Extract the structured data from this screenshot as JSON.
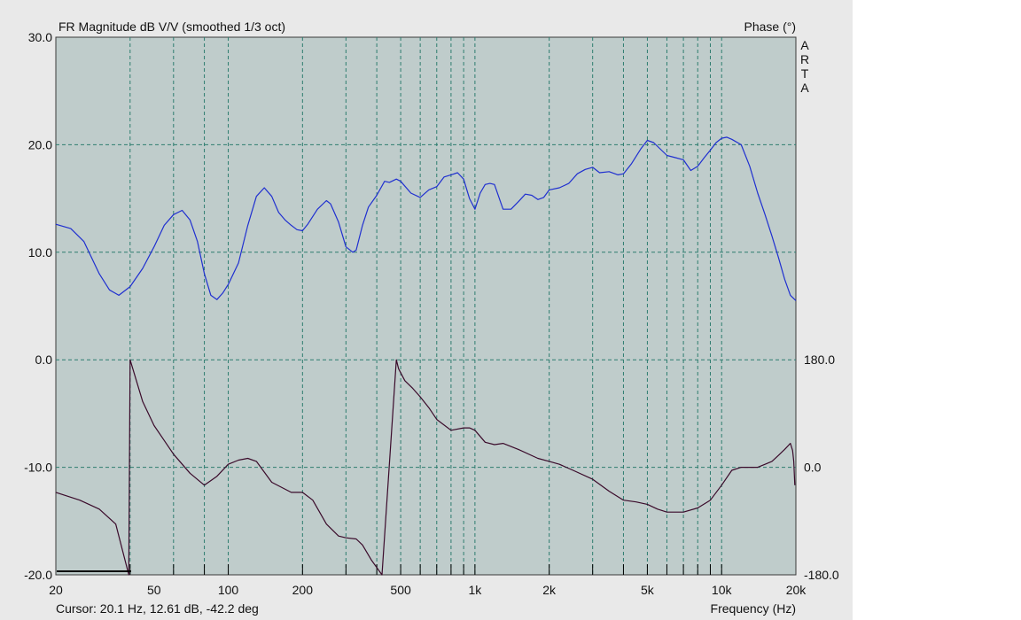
{
  "chart_data": {
    "type": "line",
    "title": "FR Magnitude dB V/V (smoothed 1/3 oct)",
    "ylabel_right": "Phase (°)",
    "xlabel": "Frequency (Hz)",
    "watermark": [
      "A",
      "R",
      "T",
      "A"
    ],
    "cursor_readout": "Cursor: 20.1 Hz, 12.61 dB, -42.2 deg",
    "x_scale": "log",
    "xlim": [
      20,
      20000
    ],
    "ylim": [
      -20,
      30
    ],
    "y2lim": [
      -180,
      180
    ],
    "grid": true,
    "x_ticks": [
      {
        "value": 20,
        "label": "20"
      },
      {
        "value": 50,
        "label": "50"
      },
      {
        "value": 100,
        "label": "100"
      },
      {
        "value": 200,
        "label": "200"
      },
      {
        "value": 500,
        "label": "500"
      },
      {
        "value": 1000,
        "label": "1k"
      },
      {
        "value": 2000,
        "label": "2k"
      },
      {
        "value": 5000,
        "label": "5k"
      },
      {
        "value": 10000,
        "label": "10k"
      },
      {
        "value": 20000,
        "label": "20k"
      }
    ],
    "y_ticks": [
      {
        "value": 30,
        "label": "30.0"
      },
      {
        "value": 20,
        "label": "20.0"
      },
      {
        "value": 10,
        "label": "10.0"
      },
      {
        "value": 0,
        "label": "0.0"
      },
      {
        "value": -10,
        "label": "-10.0"
      },
      {
        "value": -20,
        "label": "-20.0"
      }
    ],
    "y2_ticks": [
      {
        "value": 180,
        "label": "180.0"
      },
      {
        "value": 0,
        "label": "0.0"
      },
      {
        "value": -180,
        "label": "-180.0"
      }
    ],
    "colors": {
      "plot_bg": "#bfcccb",
      "grid": "#2e7d6f",
      "magnitude": "#1f2fd0",
      "phase": "#3a0a2a",
      "panel_bg": "#e9e9e9"
    },
    "series": [
      {
        "id": "magnitude",
        "axis": "left",
        "x": [
          20,
          23,
          26,
          30,
          33,
          36,
          40,
          45,
          50,
          55,
          60,
          65,
          70,
          75,
          80,
          85,
          90,
          95,
          100,
          110,
          120,
          130,
          140,
          150,
          160,
          170,
          180,
          190,
          200,
          210,
          230,
          250,
          260,
          280,
          300,
          320,
          330,
          350,
          370,
          400,
          430,
          450,
          480,
          500,
          550,
          600,
          650,
          700,
          750,
          800,
          850,
          900,
          950,
          1000,
          1050,
          1100,
          1150,
          1200,
          1300,
          1400,
          1500,
          1600,
          1700,
          1800,
          1900,
          2000,
          2200,
          2400,
          2600,
          2800,
          3000,
          3200,
          3500,
          3800,
          4000,
          4300,
          4700,
          5000,
          5300,
          5700,
          6000,
          6500,
          7000,
          7500,
          8000,
          8500,
          9000,
          9500,
          10000,
          10500,
          11000,
          12000,
          13000,
          14000,
          15000,
          16000,
          17000,
          18000,
          19000,
          20000
        ],
        "y": [
          12.6,
          12.2,
          11.0,
          8.0,
          6.5,
          6.0,
          6.8,
          8.5,
          10.5,
          12.5,
          13.5,
          13.9,
          13.0,
          11.0,
          8.0,
          6.0,
          5.6,
          6.2,
          7.0,
          9.0,
          12.5,
          15.2,
          16.0,
          15.2,
          13.7,
          13.0,
          12.5,
          12.1,
          12.0,
          12.6,
          14.0,
          14.8,
          14.5,
          12.8,
          10.5,
          10.0,
          10.2,
          12.5,
          14.2,
          15.3,
          16.6,
          16.5,
          16.8,
          16.6,
          15.5,
          15.1,
          15.8,
          16.1,
          17.0,
          17.2,
          17.4,
          16.8,
          15.0,
          14.0,
          15.5,
          16.3,
          16.4,
          16.3,
          14.0,
          14.0,
          14.7,
          15.4,
          15.3,
          14.9,
          15.1,
          15.8,
          16.0,
          16.4,
          17.3,
          17.7,
          17.9,
          17.4,
          17.5,
          17.2,
          17.3,
          18.2,
          19.6,
          20.4,
          20.2,
          19.5,
          19.0,
          18.8,
          18.6,
          17.6,
          18.0,
          18.8,
          19.5,
          20.2,
          20.6,
          20.7,
          20.5,
          20.0,
          18.0,
          15.5,
          13.5,
          11.5,
          9.5,
          7.5,
          6.0,
          5.5
        ]
      },
      {
        "id": "phase",
        "axis": "right",
        "x": [
          20,
          25,
          30,
          35,
          39.5,
          40,
          45,
          50,
          55,
          60,
          70,
          80,
          90,
          100,
          110,
          120,
          130,
          150,
          180,
          200,
          220,
          250,
          280,
          300,
          330,
          350,
          380,
          420,
          480,
          490,
          520,
          560,
          600,
          650,
          700,
          800,
          900,
          950,
          1000,
          1100,
          1200,
          1300,
          1500,
          1800,
          2000,
          2200,
          2500,
          3000,
          3500,
          4000,
          4500,
          5000,
          5500,
          6000,
          7000,
          8000,
          9000,
          10000,
          11000,
          12000,
          13000,
          14000,
          15000,
          16000,
          17000,
          18000,
          19000,
          19400,
          19600,
          19800
        ],
        "y": [
          -42,
          -55,
          -70,
          -95,
          -180,
          180,
          110,
          70,
          45,
          22,
          -10,
          -30,
          -15,
          5,
          12,
          15,
          10,
          -25,
          -42,
          -42,
          -55,
          -95,
          -115,
          -118,
          -120,
          -130,
          -155,
          -180,
          180,
          165,
          145,
          132,
          118,
          100,
          80,
          62,
          66,
          66,
          62,
          42,
          38,
          40,
          30,
          15,
          10,
          5,
          -5,
          -20,
          -40,
          -55,
          -58,
          -62,
          -70,
          -75,
          -75,
          -68,
          -55,
          -30,
          -5,
          0,
          0,
          0,
          5,
          10,
          20,
          30,
          40,
          28,
          10,
          -30
        ]
      }
    ]
  }
}
